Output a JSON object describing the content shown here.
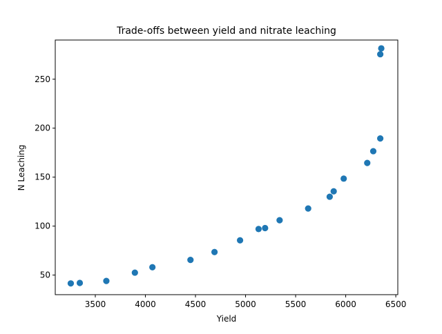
{
  "chart_data": {
    "type": "scatter",
    "title": "Trade-offs between yield and nitrate leaching",
    "xlabel": "Yield",
    "ylabel": "N Leaching",
    "xlim": [
      3100,
      6520
    ],
    "ylim": [
      30,
      290
    ],
    "xticks": [
      3500,
      4000,
      4500,
      5000,
      5500,
      6000,
      6500
    ],
    "yticks": [
      50,
      100,
      150,
      200,
      250
    ],
    "grid": false,
    "point_color": "#1f77b4",
    "points": [
      {
        "x": 3255,
        "y": 41.5
      },
      {
        "x": 3345,
        "y": 42
      },
      {
        "x": 3610,
        "y": 44
      },
      {
        "x": 3895,
        "y": 52.5
      },
      {
        "x": 4070,
        "y": 58
      },
      {
        "x": 4450,
        "y": 65.5
      },
      {
        "x": 4690,
        "y": 73.5
      },
      {
        "x": 4945,
        "y": 85.5
      },
      {
        "x": 5130,
        "y": 97
      },
      {
        "x": 5195,
        "y": 98
      },
      {
        "x": 5340,
        "y": 106
      },
      {
        "x": 5625,
        "y": 118
      },
      {
        "x": 5840,
        "y": 130
      },
      {
        "x": 5880,
        "y": 135.5
      },
      {
        "x": 5980,
        "y": 148.5
      },
      {
        "x": 6215,
        "y": 164.5
      },
      {
        "x": 6275,
        "y": 176.5
      },
      {
        "x": 6345,
        "y": 189.5
      },
      {
        "x": 6345,
        "y": 275.5
      },
      {
        "x": 6355,
        "y": 281.5
      }
    ]
  }
}
